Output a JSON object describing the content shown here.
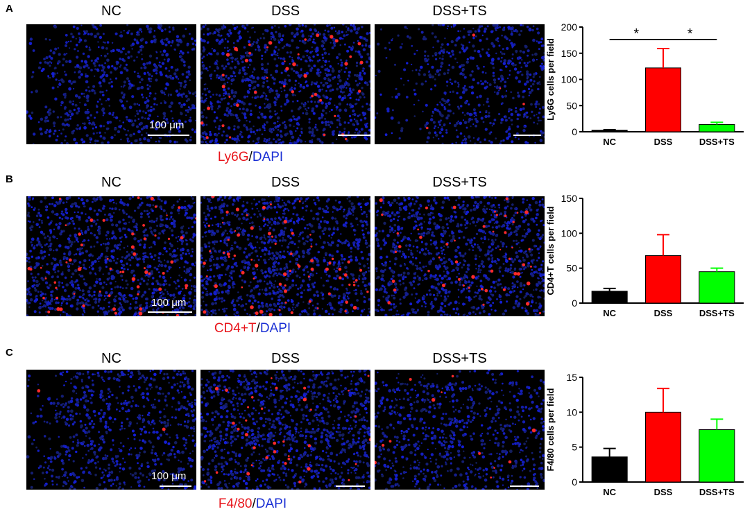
{
  "panels": [
    {
      "letter": "A",
      "columns": [
        "NC",
        "DSS",
        "DSS+TS"
      ],
      "scale_text": "100 μm",
      "stain": {
        "marker": "Ly6G",
        "sep": "/",
        "dapi": "DAPI"
      },
      "images": [
        {
          "style": "villi",
          "red_density": 0.0
        },
        {
          "style": "dense",
          "red_density": 0.35
        },
        {
          "style": "villi-right",
          "red_density": 0.03
        }
      ],
      "chart_data": {
        "type": "bar",
        "categories": [
          "NC",
          "DSS",
          "DSS+TS"
        ],
        "values": [
          3,
          122,
          14
        ],
        "errors": [
          1,
          37,
          4
        ],
        "colors": [
          "#000000",
          "#ff0000",
          "#00ff00"
        ],
        "ylabel": "Ly6G cells per field",
        "ylim": [
          0,
          200
        ],
        "yticks": [
          "0",
          "50",
          "100",
          "150",
          "200"
        ],
        "significance": [
          {
            "from": 0,
            "to": 1,
            "label": "*"
          },
          {
            "from": 1,
            "to": 2,
            "label": "*"
          }
        ]
      }
    },
    {
      "letter": "B",
      "columns": [
        "NC",
        "DSS",
        "DSS+TS"
      ],
      "scale_text": "100 μm",
      "stain": {
        "marker": "CD4+T",
        "sep": "/",
        "dapi": "DAPI"
      },
      "images": [
        {
          "style": "dense",
          "red_density": 0.5
        },
        {
          "style": "dense",
          "red_density": 0.6
        },
        {
          "style": "dense",
          "red_density": 0.4
        }
      ],
      "chart_data": {
        "type": "bar",
        "categories": [
          "NC",
          "DSS",
          "DSS+TS"
        ],
        "values": [
          17,
          68,
          45
        ],
        "errors": [
          4,
          30,
          5
        ],
        "colors": [
          "#000000",
          "#ff0000",
          "#00ff00"
        ],
        "ylabel": "CD4+T cells per field",
        "ylim": [
          0,
          150
        ],
        "yticks": [
          "0",
          "50",
          "100",
          "150"
        ],
        "significance": []
      }
    },
    {
      "letter": "C",
      "columns": [
        "NC",
        "DSS",
        "DSS+TS"
      ],
      "scale_text": "100 μm",
      "stain": {
        "marker": "F4/80",
        "sep": "/",
        "dapi": "DAPI"
      },
      "images": [
        {
          "style": "villi",
          "red_density": 0.02
        },
        {
          "style": "dense",
          "red_density": 0.3
        },
        {
          "style": "crypts",
          "red_density": 0.1
        }
      ],
      "chart_data": {
        "type": "bar",
        "categories": [
          "NC",
          "DSS",
          "DSS+TS"
        ],
        "values": [
          3.6,
          10,
          7.5
        ],
        "errors": [
          1.2,
          3.4,
          1.5
        ],
        "colors": [
          "#000000",
          "#ff0000",
          "#00ff00"
        ],
        "ylabel": "F4/80 cells per field",
        "ylim": [
          0,
          15
        ],
        "yticks": [
          "0",
          "5",
          "10",
          "15"
        ],
        "significance": []
      }
    }
  ]
}
